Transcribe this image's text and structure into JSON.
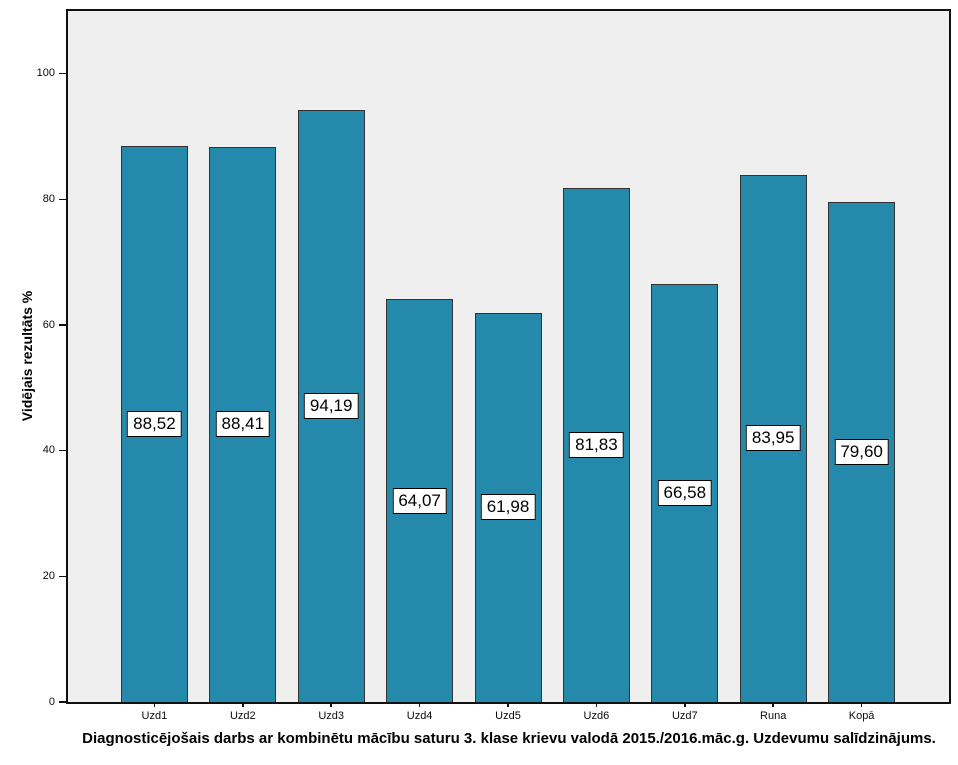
{
  "chart_data": {
    "type": "bar",
    "title": "Diagnosticējošais darbs ar kombinētu mācību saturu 3. klase krievu valodā 2015./2016.māc.g. Uzdevumu salīdzinājums.",
    "ylabel": "Vidējais rezultāts %",
    "xlabel": "",
    "categories": [
      "Uzd1",
      "Uzd2",
      "Uzd3",
      "Uzd4",
      "Uzd5",
      "Uzd6",
      "Uzd7",
      "Runa",
      "Kopā"
    ],
    "values": [
      88.52,
      88.41,
      94.19,
      64.07,
      61.98,
      81.83,
      66.58,
      83.95,
      79.6
    ],
    "value_labels": [
      "88,52",
      "88,41",
      "94,19",
      "64,07",
      "61,98",
      "81,83",
      "66,58",
      "83,95",
      "79,60"
    ],
    "yticks": [
      0,
      20,
      40,
      60,
      80,
      100
    ],
    "ylim": [
      0,
      110.3
    ],
    "grid": "off",
    "legend": "none",
    "value_label_position": "centered-in-bar",
    "colors": {
      "bar_fill": "#2589ac",
      "bar_border": "#333333",
      "plot_bg": "#efefef",
      "frame": "#101010",
      "text": "#000000"
    }
  }
}
